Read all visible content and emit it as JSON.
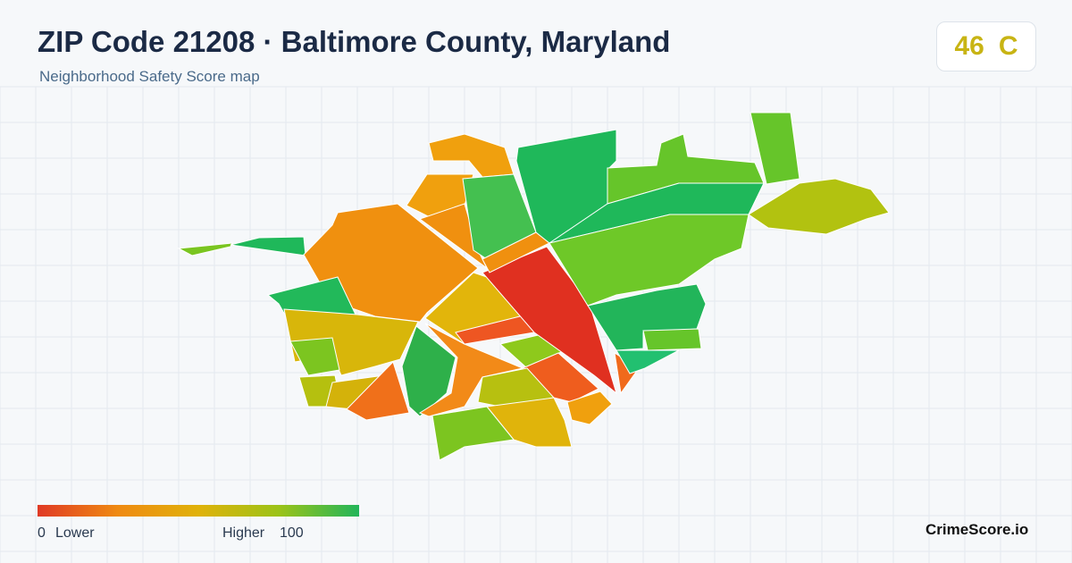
{
  "header": {
    "title": "ZIP Code 21208 · Baltimore County, Maryland",
    "subtitle": "Neighborhood Safety Score map"
  },
  "score": {
    "value": 46,
    "grade": "C"
  },
  "legend": {
    "min": 0,
    "min_label": "Lower",
    "max_label": "Higher",
    "max": 100
  },
  "brand": "CrimeScore.io"
}
